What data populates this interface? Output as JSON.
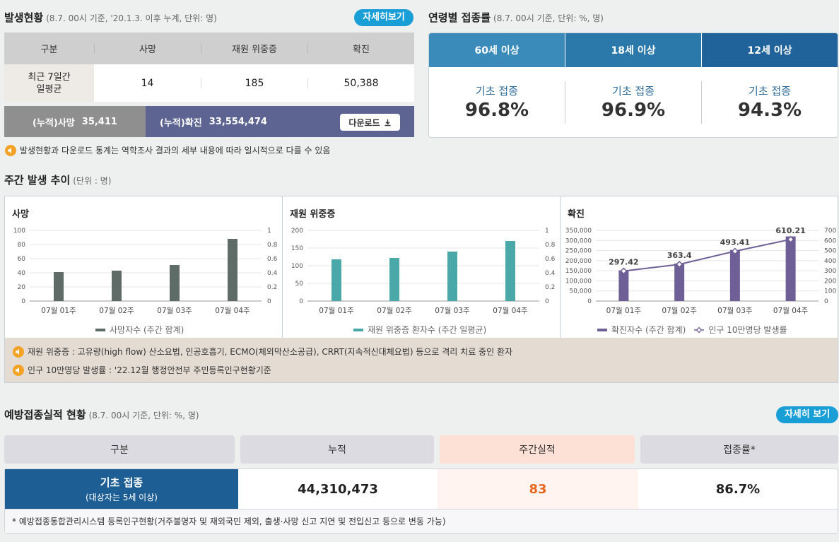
{
  "occurrence": {
    "title": "발생현황",
    "subtitle": "(8.7. 00시 기준, '20.1.3. 이후 누계, 단위: 명)",
    "detail_button": "자세히보기",
    "headers": [
      "구분",
      "사망",
      "재원 위중증",
      "확진"
    ],
    "row_label": "최근 7일간\n일평균",
    "row_values": [
      "14",
      "185",
      "50,388"
    ],
    "cum_death_label": "(누적)사망",
    "cum_death_value": "35,411",
    "cum_confirmed_label": "(누적)확진",
    "cum_confirmed_value": "33,554,474",
    "download_label": "다운로드",
    "note": "발생현황과 다운로드 통계는 역학조사 결과의 세부 내용에 따라 일시적으로 다를 수 있음"
  },
  "age_rates": {
    "title": "연령별 접종률",
    "subtitle": "(8.7. 00시 기준, 단위: %, 명)",
    "tabs": [
      {
        "label": "60세 이상",
        "color": "#3a8bba",
        "dose_label": "기초 접종",
        "rate": "96.8%"
      },
      {
        "label": "18세 이상",
        "color": "#2b79ab",
        "dose_label": "기초 접종",
        "rate": "96.9%"
      },
      {
        "label": "12세 이상",
        "color": "#1f639a",
        "dose_label": "기초 접종",
        "rate": "94.3%"
      }
    ]
  },
  "weekly": {
    "title": "주간 발생 추이",
    "subtitle": "(단위 : 명)",
    "notes": [
      "재원 위중증 : 고유량(high flow) 산소요법, 인공호흡기, ECMO(체외막산소공급), CRRT(지속적신대체요법) 등으로 격리 치료 중인 환자",
      "인구 10만명당 발생률 : '22.12월 행정안전부 주민등록인구현황기준"
    ]
  },
  "chart_data": [
    {
      "type": "bar",
      "title": "사망",
      "categories": [
        "07월 01주",
        "07월 02주",
        "07월 03주",
        "07월 04주"
      ],
      "series": [
        {
          "name": "사망자수 (주간 합계)",
          "values": [
            41,
            43,
            51,
            88
          ],
          "color": "#5f6b67"
        }
      ],
      "ylim": [
        0,
        100
      ],
      "y_ticks": [
        "0",
        "20",
        "40",
        "60",
        "80",
        "100"
      ],
      "y2_ticks": [
        "0",
        "0.2",
        "0.4",
        "0.6",
        "0.8",
        "1"
      ]
    },
    {
      "type": "bar",
      "title": "재원 위중증",
      "categories": [
        "07월 01주",
        "07월 02주",
        "07월 03주",
        "07월 04주"
      ],
      "series": [
        {
          "name": "재원 위중증 환자수 (주간 일평균)",
          "values": [
            118,
            122,
            140,
            170
          ],
          "color": "#4aa8a8"
        }
      ],
      "ylim": [
        0,
        200
      ],
      "y_ticks": [
        "0",
        "50",
        "100",
        "150",
        "200"
      ],
      "y2_ticks": [
        "0",
        "0.2",
        "0.4",
        "0.6",
        "0.8",
        "1"
      ]
    },
    {
      "type": "bar",
      "title": "확진",
      "categories": [
        "07월 01주",
        "07월 02주",
        "07월 03주",
        "07월 04주"
      ],
      "series": [
        {
          "name": "확진자수 (주간 합계)",
          "values": [
            152000,
            186000,
            253000,
            320000
          ],
          "color": "#6e5f96"
        },
        {
          "name": "인구 10만명당 발생률",
          "type": "line",
          "values": [
            297.42,
            363.4,
            493.41,
            610.21
          ],
          "labels": [
            "297.42",
            "363.4",
            "493.41",
            "610.21"
          ],
          "color": "#6e5f96"
        }
      ],
      "ylim": [
        0,
        350000
      ],
      "y2lim": [
        0,
        700
      ],
      "y_ticks": [
        "0",
        "50,000",
        "100,000",
        "150,000",
        "200,000",
        "250,000",
        "300,000",
        "350,000"
      ],
      "y2_ticks": [
        "0",
        "100",
        "200",
        "300",
        "400",
        "500",
        "600",
        "700"
      ]
    }
  ],
  "vaccination": {
    "title": "예방접종실적 현황",
    "subtitle": "(8.7. 00시 기준, 단위: %, 명)",
    "detail_button": "자세히 보기",
    "headers": [
      "구분",
      "누적",
      "주간실적",
      "접종률*"
    ],
    "row_label": "기초 접종",
    "row_sub": "(대상자는 5세 이상)",
    "cumulative": "44,310,473",
    "weekly": "83",
    "rate": "86.7%",
    "footnote": "* 예방접종통합관리시스템 등록인구현황(거주불명자 및 재외국민 제외, 출생·사망 신고 지연 및 전입신고 등으로 변동 가능)"
  }
}
